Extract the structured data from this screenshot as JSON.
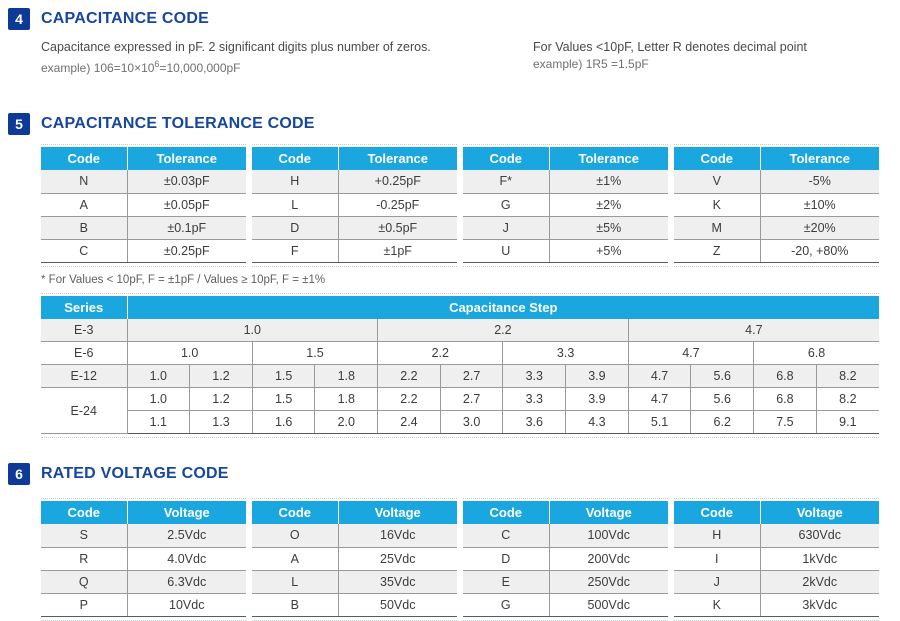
{
  "colors": {
    "header_cyan": "#1aa7e0",
    "badge_blue": "#0d3a96",
    "title_blue": "#17469e",
    "row_shade_gray": "#efefef",
    "grid_line": "#9a9a9a"
  },
  "sections": {
    "capacitance_code": {
      "number": "4",
      "title": "CAPACITANCE CODE",
      "left_text": "Capacitance expressed in pF. 2 significant digits plus number of zeros.",
      "left_example_prefix": "example) 106=10×10",
      "left_example_sup": "6",
      "left_example_suffix": "=10,000,000pF",
      "right_text": "For Values <10pF, Letter R denotes decimal point",
      "right_example": "example) 1R5 =1.5pF"
    },
    "tolerance": {
      "number": "5",
      "title": "CAPACITANCE TOLERANCE CODE",
      "code_table": {
        "headers": [
          "Code",
          "Tolerance"
        ],
        "groups": [
          [
            [
              "N",
              "±0.03pF"
            ],
            [
              "A",
              "±0.05pF"
            ],
            [
              "B",
              "±0.1pF"
            ],
            [
              "C",
              "±0.25pF"
            ]
          ],
          [
            [
              "H",
              "+0.25pF"
            ],
            [
              "L",
              "-0.25pF"
            ],
            [
              "D",
              "±0.5pF"
            ],
            [
              "F",
              "±1pF"
            ]
          ],
          [
            [
              "F*",
              "±1%"
            ],
            [
              "G",
              "±2%"
            ],
            [
              "J",
              "±5%"
            ],
            [
              "U",
              "+5%"
            ]
          ],
          [
            [
              "V",
              "-5%"
            ],
            [
              "K",
              "±10%"
            ],
            [
              "M",
              "±20%"
            ],
            [
              "Z",
              "-20, +80%"
            ]
          ]
        ]
      },
      "footnote": "* For Values < 10pF, F = ±1pF  /  Values ≥ 10pF, F = ±1%",
      "step_table": {
        "series_header": "Series",
        "step_header": "Capacitance Step",
        "rows": [
          {
            "series": "E-3",
            "shade": true,
            "cells": [
              {
                "v": "1.0",
                "span": 4
              },
              {
                "v": "2.2",
                "span": 4
              },
              {
                "v": "4.7",
                "span": 4
              }
            ]
          },
          {
            "series": "E-6",
            "shade": false,
            "cells": [
              {
                "v": "1.0",
                "span": 2
              },
              {
                "v": "1.5",
                "span": 2
              },
              {
                "v": "2.2",
                "span": 2
              },
              {
                "v": "3.3",
                "span": 2
              },
              {
                "v": "4.7",
                "span": 2
              },
              {
                "v": "6.8",
                "span": 2
              }
            ]
          },
          {
            "series": "E-12",
            "shade": true,
            "cells": [
              {
                "v": "1.0",
                "span": 1
              },
              {
                "v": "1.2",
                "span": 1
              },
              {
                "v": "1.5",
                "span": 1
              },
              {
                "v": "1.8",
                "span": 1
              },
              {
                "v": "2.2",
                "span": 1
              },
              {
                "v": "2.7",
                "span": 1
              },
              {
                "v": "3.3",
                "span": 1
              },
              {
                "v": "3.9",
                "span": 1
              },
              {
                "v": "4.7",
                "span": 1
              },
              {
                "v": "5.6",
                "span": 1
              },
              {
                "v": "6.8",
                "span": 1
              },
              {
                "v": "8.2",
                "span": 1
              }
            ]
          },
          {
            "series": "E-24",
            "series_rowspan": 2,
            "shade": false,
            "cells": [
              {
                "v": "1.0",
                "span": 1
              },
              {
                "v": "1.2",
                "span": 1
              },
              {
                "v": "1.5",
                "span": 1
              },
              {
                "v": "1.8",
                "span": 1
              },
              {
                "v": "2.2",
                "span": 1
              },
              {
                "v": "2.7",
                "span": 1
              },
              {
                "v": "3.3",
                "span": 1
              },
              {
                "v": "3.9",
                "span": 1
              },
              {
                "v": "4.7",
                "span": 1
              },
              {
                "v": "5.6",
                "span": 1
              },
              {
                "v": "6.8",
                "span": 1
              },
              {
                "v": "8.2",
                "span": 1
              }
            ]
          },
          {
            "series": null,
            "shade": false,
            "cells": [
              {
                "v": "1.1",
                "span": 1
              },
              {
                "v": "1.3",
                "span": 1
              },
              {
                "v": "1.6",
                "span": 1
              },
              {
                "v": "2.0",
                "span": 1
              },
              {
                "v": "2.4",
                "span": 1
              },
              {
                "v": "3.0",
                "span": 1
              },
              {
                "v": "3.6",
                "span": 1
              },
              {
                "v": "4.3",
                "span": 1
              },
              {
                "v": "5.1",
                "span": 1
              },
              {
                "v": "6.2",
                "span": 1
              },
              {
                "v": "7.5",
                "span": 1
              },
              {
                "v": "9.1",
                "span": 1
              }
            ]
          }
        ]
      }
    },
    "voltage": {
      "number": "6",
      "title": "RATED VOLTAGE CODE",
      "code_table": {
        "headers": [
          "Code",
          "Voltage"
        ],
        "groups": [
          [
            [
              "S",
              "2.5Vdc"
            ],
            [
              "R",
              "4.0Vdc"
            ],
            [
              "Q",
              "6.3Vdc"
            ],
            [
              "P",
              "10Vdc"
            ]
          ],
          [
            [
              "O",
              "16Vdc"
            ],
            [
              "A",
              "25Vdc"
            ],
            [
              "L",
              "35Vdc"
            ],
            [
              "B",
              "50Vdc"
            ]
          ],
          [
            [
              "C",
              "100Vdc"
            ],
            [
              "D",
              "200Vdc"
            ],
            [
              "E",
              "250Vdc"
            ],
            [
              "G",
              "500Vdc"
            ]
          ],
          [
            [
              "H",
              "630Vdc"
            ],
            [
              "I",
              "1kVdc"
            ],
            [
              "J",
              "2kVdc"
            ],
            [
              "K",
              "3kVdc"
            ]
          ]
        ]
      }
    }
  }
}
